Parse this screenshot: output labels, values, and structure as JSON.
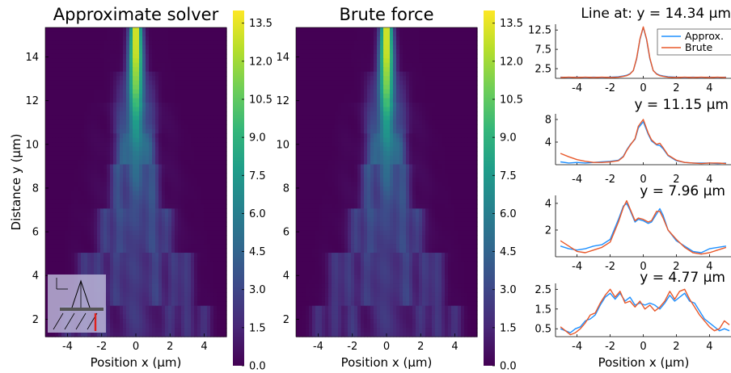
{
  "heatmap_colors": [
    "#440154",
    "#482878",
    "#3e4989",
    "#31688e",
    "#26828e",
    "#1f9e89",
    "#35b779",
    "#6ece58",
    "#b5de2b",
    "#fde725"
  ],
  "series_colors": {
    "approx": "#1e90ff",
    "brute": "#e8582a"
  },
  "inset_icon": "beam-geometry-inset-icon",
  "chart_data": [
    {
      "type": "heatmap",
      "title": "Approximate solver",
      "xlabel": "Position x (μm)",
      "ylabel": "Distance y (μm)",
      "xlim": [
        -5.3,
        5.3
      ],
      "ylim": [
        1.2,
        15.35
      ],
      "x_ticks": [
        "-4",
        "-2",
        "0",
        "2",
        "4"
      ],
      "y_ticks": [
        "2",
        "4",
        "6",
        "8",
        "10",
        "12",
        "14"
      ],
      "colorbar": {
        "range": [
          0,
          14
        ],
        "ticks": [
          "0.0",
          "1.5",
          "3.0",
          "4.5",
          "6.0",
          "7.5",
          "9.0",
          "10.5",
          "12.0",
          "13.5"
        ]
      },
      "beam_profile": [
        {
          "y": 15.35,
          "peak": 13.8,
          "center_width": 0.25,
          "side_positions": [],
          "side_amp": 0
        },
        {
          "y": 14.0,
          "peak": 13.2,
          "center_width": 0.3,
          "side_positions": [],
          "side_amp": 0
        },
        {
          "y": 12.5,
          "peak": 11.0,
          "center_width": 0.33,
          "side_positions": [
            -0.9,
            0.9
          ],
          "side_amp": 1.5
        },
        {
          "y": 11.0,
          "peak": 7.5,
          "center_width": 0.35,
          "side_positions": [
            -0.9,
            0.9
          ],
          "side_amp": 2.2
        },
        {
          "y": 10.0,
          "peak": 6.0,
          "center_width": 0.38,
          "side_positions": [
            -0.8,
            0.8
          ],
          "side_amp": 3.5
        },
        {
          "y": 8.0,
          "peak": 4.0,
          "center_width": 0.4,
          "side_positions": [
            -1.1,
            1.0
          ],
          "side_amp": 3.2
        },
        {
          "y": 6.0,
          "peak": 2.4,
          "center_width": 0.5,
          "side_positions": [
            -1.8,
            -1.0,
            1.0,
            1.8
          ],
          "side_amp": 2.5
        },
        {
          "y": 4.0,
          "peak": 2.0,
          "center_width": 0.6,
          "side_positions": [
            -3.0,
            -2.2,
            -1.2,
            1.2,
            2.2,
            3.0
          ],
          "side_amp": 2.2
        },
        {
          "y": 1.2,
          "peak": 1.6,
          "center_width": 0.7,
          "side_positions": [
            -4.0,
            -3.0,
            -2.0,
            2.0,
            3.0,
            4.0
          ],
          "side_amp": 2.0
        }
      ]
    },
    {
      "type": "heatmap",
      "title": "Brute force",
      "xlabel": "Position x (μm)",
      "ylabel": "",
      "xlim": [
        -5.3,
        5.3
      ],
      "ylim": [
        1.2,
        15.35
      ],
      "x_ticks": [
        "-4",
        "-2",
        "0",
        "2",
        "4"
      ],
      "y_ticks": [
        "2",
        "4",
        "6",
        "8",
        "10",
        "12",
        "14"
      ],
      "colorbar": {
        "range": [
          0,
          14
        ],
        "ticks": [
          "0.0",
          "1.5",
          "3.0",
          "4.5",
          "6.0",
          "7.5",
          "9.0",
          "10.5",
          "12.0",
          "13.5"
        ]
      }
    },
    {
      "type": "line",
      "title": "Line at: y = 14.34 μm",
      "xlim": [
        -5.3,
        5.3
      ],
      "ylim": [
        0,
        14
      ],
      "x_ticks": [
        "-4",
        "-2",
        "0",
        "2",
        "4"
      ],
      "y_ticks": [
        "2.5",
        "7.5",
        "12.5"
      ],
      "legend": [
        "Approx.",
        "Brute"
      ],
      "legend_position": "top-right",
      "x": [
        -5,
        -4.5,
        -4,
        -3.5,
        -3,
        -2.5,
        -2,
        -1.5,
        -1.2,
        -1,
        -0.8,
        -0.6,
        -0.4,
        -0.2,
        0,
        0.2,
        0.4,
        0.6,
        0.8,
        1,
        1.2,
        1.5,
        2,
        2.5,
        3,
        3.5,
        4,
        4.5,
        5
      ],
      "series": [
        {
          "name": "Approx.",
          "values": [
            0.3,
            0.2,
            0.3,
            0.2,
            0.3,
            0.2,
            0.3,
            0.4,
            0.6,
            0.8,
            1.2,
            2.0,
            5.0,
            10.0,
            13.2,
            10.0,
            5.0,
            2.0,
            1.2,
            0.8,
            0.6,
            0.4,
            0.3,
            0.2,
            0.3,
            0.2,
            0.3,
            0.2,
            0.3
          ]
        },
        {
          "name": "Brute",
          "values": [
            0.2,
            0.3,
            0.2,
            0.3,
            0.2,
            0.3,
            0.2,
            0.3,
            0.5,
            0.7,
            1.1,
            2.0,
            5.2,
            10.2,
            13.3,
            10.2,
            5.2,
            2.0,
            1.1,
            0.7,
            0.5,
            0.3,
            0.2,
            0.3,
            0.2,
            0.3,
            0.2,
            0.3,
            0.2
          ]
        }
      ]
    },
    {
      "type": "line",
      "title": "y = 11.15 μm",
      "xlim": [
        -5.3,
        5.3
      ],
      "ylim": [
        0,
        9
      ],
      "x_ticks": [
        "-4",
        "-2",
        "0",
        "2",
        "4"
      ],
      "y_ticks": [
        "4",
        "8"
      ],
      "x": [
        -5,
        -4.5,
        -4,
        -3.5,
        -3,
        -2.5,
        -2,
        -1.5,
        -1.2,
        -1,
        -0.8,
        -0.5,
        -0.3,
        0,
        0.3,
        0.5,
        0.8,
        1,
        1.2,
        1.5,
        2,
        2.5,
        3,
        3.5,
        4,
        4.5,
        5
      ],
      "series": [
        {
          "name": "Approx.",
          "values": [
            0.5,
            0.3,
            0.4,
            0.3,
            0.4,
            0.5,
            0.6,
            0.8,
            1.5,
            2.6,
            3.5,
            4.5,
            6.5,
            7.6,
            5.4,
            4.2,
            3.5,
            3.4,
            2.8,
            1.6,
            0.7,
            0.4,
            0.3,
            0.3,
            0.3,
            0.2,
            0.3
          ]
        },
        {
          "name": "Brute",
          "values": [
            2.0,
            1.4,
            0.9,
            0.6,
            0.4,
            0.4,
            0.5,
            0.7,
            1.4,
            2.5,
            3.4,
            4.6,
            6.8,
            8.0,
            5.6,
            4.4,
            3.6,
            3.8,
            3.0,
            1.7,
            0.8,
            0.4,
            0.3,
            0.2,
            0.3,
            0.3,
            0.2
          ]
        }
      ]
    },
    {
      "type": "line",
      "title": "y = 7.96 μm",
      "xlim": [
        -5.3,
        5.3
      ],
      "ylim": [
        0,
        4.6
      ],
      "x_ticks": [
        "-4",
        "-2",
        "0",
        "2",
        "4"
      ],
      "y_ticks": [
        "2",
        "4"
      ],
      "x": [
        -5,
        -4.5,
        -4,
        -3.5,
        -3,
        -2.5,
        -2,
        -1.5,
        -1.2,
        -1,
        -0.8,
        -0.5,
        -0.3,
        0,
        0.3,
        0.5,
        0.8,
        1,
        1.2,
        1.5,
        2,
        2.5,
        3,
        3.5,
        4,
        4.5,
        5
      ],
      "series": [
        {
          "name": "Approx.",
          "values": [
            0.8,
            0.6,
            0.5,
            0.6,
            0.8,
            0.9,
            1.3,
            2.8,
            3.8,
            4.0,
            3.5,
            2.6,
            2.8,
            2.7,
            2.5,
            2.6,
            3.2,
            3.6,
            3.1,
            2.0,
            1.2,
            0.8,
            0.4,
            0.3,
            0.6,
            0.7,
            0.8
          ]
        },
        {
          "name": "Brute",
          "values": [
            1.2,
            0.8,
            0.4,
            0.3,
            0.5,
            0.7,
            1.1,
            2.6,
            3.7,
            4.2,
            3.6,
            2.7,
            2.9,
            2.8,
            2.6,
            2.7,
            3.4,
            3.4,
            2.9,
            2.0,
            1.3,
            0.7,
            0.3,
            0.2,
            0.3,
            0.5,
            0.7
          ]
        }
      ]
    },
    {
      "type": "line",
      "title": "y = 4.77 μm",
      "xlim": [
        -5.3,
        5.3
      ],
      "ylim": [
        0.1,
        2.8
      ],
      "x_ticks": [
        "-4",
        "-2",
        "0",
        "2",
        "4"
      ],
      "y_ticks": [
        "0.5",
        "1.5",
        "2.5"
      ],
      "x": [
        -5,
        -4.7,
        -4.4,
        -4.1,
        -3.8,
        -3.5,
        -3.2,
        -2.9,
        -2.6,
        -2.3,
        -2,
        -1.7,
        -1.4,
        -1.1,
        -0.8,
        -0.5,
        -0.2,
        0.1,
        0.4,
        0.7,
        1,
        1.3,
        1.6,
        1.9,
        2.2,
        2.5,
        2.8,
        3.1,
        3.4,
        3.7,
        4,
        4.3,
        4.6,
        4.9,
        5.2
      ],
      "series": [
        {
          "name": "Approx.",
          "values": [
            0.5,
            0.4,
            0.3,
            0.5,
            0.6,
            0.9,
            1.0,
            1.2,
            1.7,
            2.1,
            2.3,
            2.0,
            2.3,
            1.9,
            2.1,
            1.7,
            1.8,
            1.7,
            1.8,
            1.7,
            1.5,
            1.8,
            2.2,
            1.9,
            2.1,
            2.3,
            1.9,
            1.8,
            1.4,
            1.0,
            0.8,
            0.6,
            0.4,
            0.5,
            0.4
          ]
        },
        {
          "name": "Brute",
          "values": [
            0.6,
            0.4,
            0.2,
            0.3,
            0.5,
            0.8,
            1.2,
            1.3,
            1.8,
            2.2,
            2.5,
            2.1,
            2.4,
            1.8,
            1.9,
            1.6,
            1.9,
            1.5,
            1.7,
            1.4,
            1.6,
            1.9,
            2.4,
            2.0,
            2.4,
            2.5,
            2.0,
            1.6,
            1.2,
            0.9,
            0.6,
            0.4,
            0.5,
            0.9,
            0.7
          ]
        }
      ]
    }
  ]
}
